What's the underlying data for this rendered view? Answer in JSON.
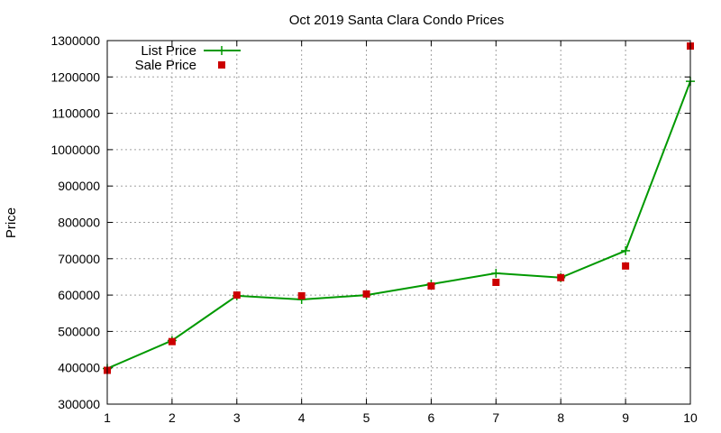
{
  "chart_data": {
    "type": "line",
    "title": "Oct 2019 Santa Clara Condo Prices",
    "xlabel": "",
    "ylabel": "Price",
    "x": [
      1,
      2,
      3,
      4,
      5,
      6,
      7,
      8,
      9,
      10
    ],
    "xlim": [
      1,
      10
    ],
    "ylim": [
      300000,
      1300000
    ],
    "xticks": [
      1,
      2,
      3,
      4,
      5,
      6,
      7,
      8,
      9,
      10
    ],
    "yticks": [
      300000,
      400000,
      500000,
      600000,
      700000,
      800000,
      900000,
      1000000,
      1100000,
      1200000,
      1300000
    ],
    "grid": true,
    "legend_position": "top-left",
    "series": [
      {
        "name": "List Price",
        "style": "line-with-plus",
        "color": "#009900",
        "values": [
          398000,
          475000,
          598000,
          588000,
          600000,
          630000,
          660000,
          648000,
          722000,
          1188000
        ]
      },
      {
        "name": "Sale Price",
        "style": "square-points",
        "color": "#cc0000",
        "values": [
          393000,
          472000,
          600000,
          598000,
          603000,
          625000,
          635000,
          648000,
          680000,
          1285000
        ]
      }
    ]
  }
}
